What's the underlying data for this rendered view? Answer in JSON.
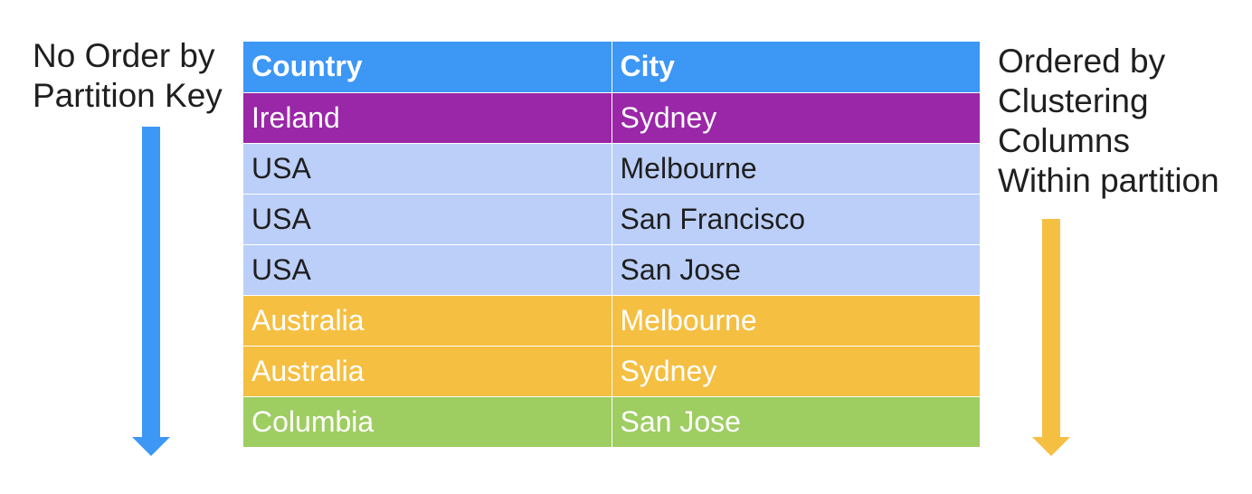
{
  "left_label": {
    "lines": [
      "No Order by",
      "Partition Key"
    ]
  },
  "right_label": {
    "lines": [
      "Ordered by",
      "Clustering",
      "Columns",
      "Within partition"
    ]
  },
  "colors": {
    "header": "#3d97f5",
    "ireland": "#9a27a7",
    "usa": "#bbcff9",
    "australia": "#f5bf42",
    "columbia": "#9ecd62",
    "left_arrow": "#3d97f5",
    "right_arrow": "#f5bf42"
  },
  "table": {
    "headers": [
      "Country",
      "City"
    ],
    "rows": [
      {
        "country": "Ireland",
        "city": "Sydney",
        "group": "ireland",
        "text_color": "#ffffff"
      },
      {
        "country": "USA",
        "city": "Melbourne",
        "group": "usa",
        "text_color": "#1f1f1f"
      },
      {
        "country": "USA",
        "city": "San Francisco",
        "group": "usa",
        "text_color": "#1f1f1f"
      },
      {
        "country": "USA",
        "city": "San Jose",
        "group": "usa",
        "text_color": "#1f1f1f"
      },
      {
        "country": "Australia",
        "city": "Melbourne",
        "group": "australia",
        "text_color": "#ffffff"
      },
      {
        "country": "Australia",
        "city": "Sydney",
        "group": "australia",
        "text_color": "#ffffff"
      },
      {
        "country": "Columbia",
        "city": "San Jose",
        "group": "columbia",
        "text_color": "#ffffff"
      }
    ]
  }
}
